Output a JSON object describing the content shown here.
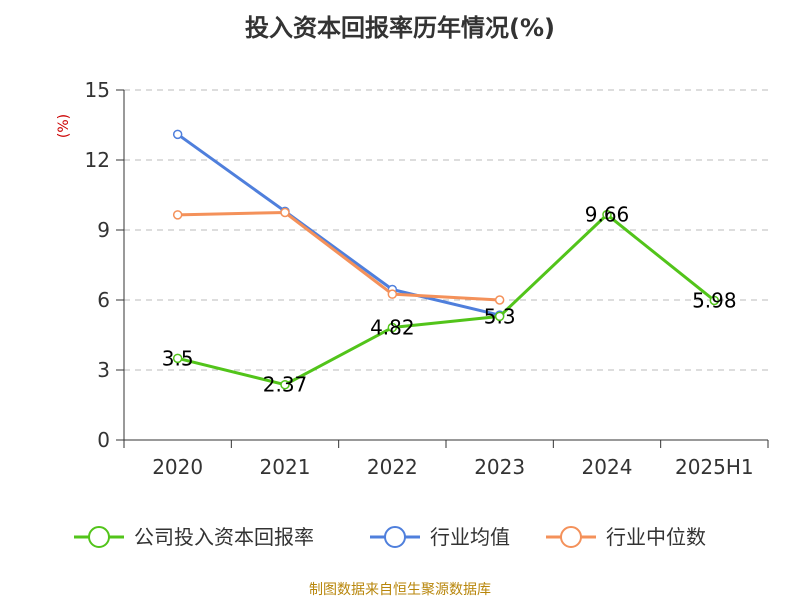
{
  "chart_data": {
    "type": "line",
    "title": "投入资本回报率历年情况(%)",
    "ylabel": "(%)",
    "categories": [
      "2020",
      "2021",
      "2022",
      "2023",
      "2024",
      "2025H1"
    ],
    "ylim": [
      0,
      15
    ],
    "yticks": [
      0,
      3,
      6,
      9,
      12,
      15
    ],
    "grid": true,
    "legend_position": "bottom",
    "series": [
      {
        "name": "公司投入资本回报率",
        "color": "#52c41a",
        "values": [
          3.5,
          2.37,
          4.82,
          5.3,
          9.66,
          5.98
        ],
        "labels": [
          "3.5",
          "2.37",
          "4.82",
          "5.3",
          "9.66",
          "5.98"
        ]
      },
      {
        "name": "行业均值",
        "color": "#4f7fdc",
        "values": [
          13.1,
          9.8,
          6.45,
          5.35,
          null,
          null
        ]
      },
      {
        "name": "行业中位数",
        "color": "#f4915a",
        "values": [
          9.65,
          9.75,
          6.25,
          6.0,
          null,
          null
        ]
      }
    ]
  },
  "source_note": "制图数据来自恒生聚源数据库"
}
